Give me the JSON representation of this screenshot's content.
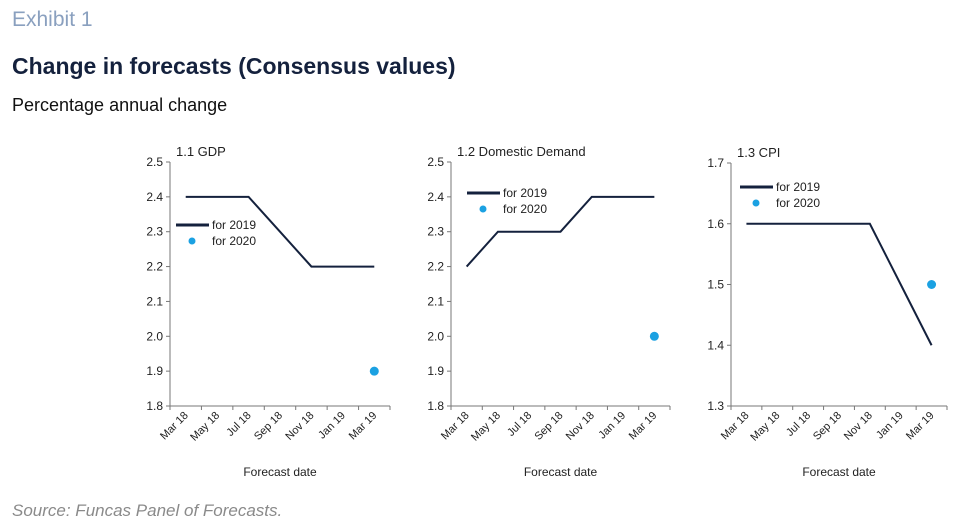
{
  "header": {
    "exhibit": "Exhibit 1",
    "title": "Change in forecasts (Consensus values)",
    "subtitle": "Percentage annual change"
  },
  "footer": {
    "source": "Source: Funcas Panel of Forecasts."
  },
  "colors": {
    "line": "#14213d",
    "dot": "#1ba1e2"
  },
  "chart_data": [
    {
      "type": "line",
      "title": "1.1 GDP",
      "xlabel": "Forecast date",
      "categories": [
        "Mar 18",
        "May 18",
        "Jul 18",
        "Sep 18",
        "Nov 18",
        "Jan 19",
        "Mar 19"
      ],
      "ylim": [
        1.8,
        2.5
      ],
      "yticks": [
        "1.8",
        "1.9",
        "2.0",
        "2.1",
        "2.2",
        "2.3",
        "2.4",
        "2.5"
      ],
      "legend_position": "upper-left",
      "series": [
        {
          "name": "for 2019",
          "kind": "line",
          "values": [
            2.4,
            2.4,
            2.4,
            2.3,
            2.2,
            2.2,
            2.2
          ]
        },
        {
          "name": "for 2020",
          "kind": "point",
          "values": [
            null,
            null,
            null,
            null,
            null,
            null,
            1.9
          ]
        }
      ]
    },
    {
      "type": "line",
      "title": "1.2 Domestic Demand",
      "xlabel": "Forecast date",
      "categories": [
        "Mar 18",
        "May 18",
        "Jul 18",
        "Sep 18",
        "Nov 18",
        "Jan 19",
        "Mar 19"
      ],
      "ylim": [
        1.8,
        2.5
      ],
      "yticks": [
        "1.8",
        "1.9",
        "2.0",
        "2.1",
        "2.2",
        "2.3",
        "2.4",
        "2.5"
      ],
      "legend_position": "upper-left",
      "series": [
        {
          "name": "for 2019",
          "kind": "line",
          "values": [
            2.2,
            2.3,
            2.3,
            2.3,
            2.4,
            2.4,
            2.4
          ]
        },
        {
          "name": "for 2020",
          "kind": "point",
          "values": [
            null,
            null,
            null,
            null,
            null,
            null,
            2.0
          ]
        }
      ]
    },
    {
      "type": "line",
      "title": "1.3 CPI",
      "xlabel": "Forecast date",
      "categories": [
        "Mar 18",
        "May 18",
        "Jul 18",
        "Sep 18",
        "Nov 18",
        "Jan 19",
        "Mar 19"
      ],
      "ylim": [
        1.3,
        1.7
      ],
      "yticks": [
        "1.3",
        "1.4",
        "1.5",
        "1.6",
        "1.7"
      ],
      "legend_position": "upper-left",
      "series": [
        {
          "name": "for 2019",
          "kind": "line",
          "values": [
            1.6,
            1.6,
            1.6,
            1.6,
            1.6,
            1.5,
            1.4
          ]
        },
        {
          "name": "for 2020",
          "kind": "point",
          "values": [
            null,
            null,
            null,
            null,
            null,
            null,
            1.5
          ]
        }
      ]
    }
  ]
}
